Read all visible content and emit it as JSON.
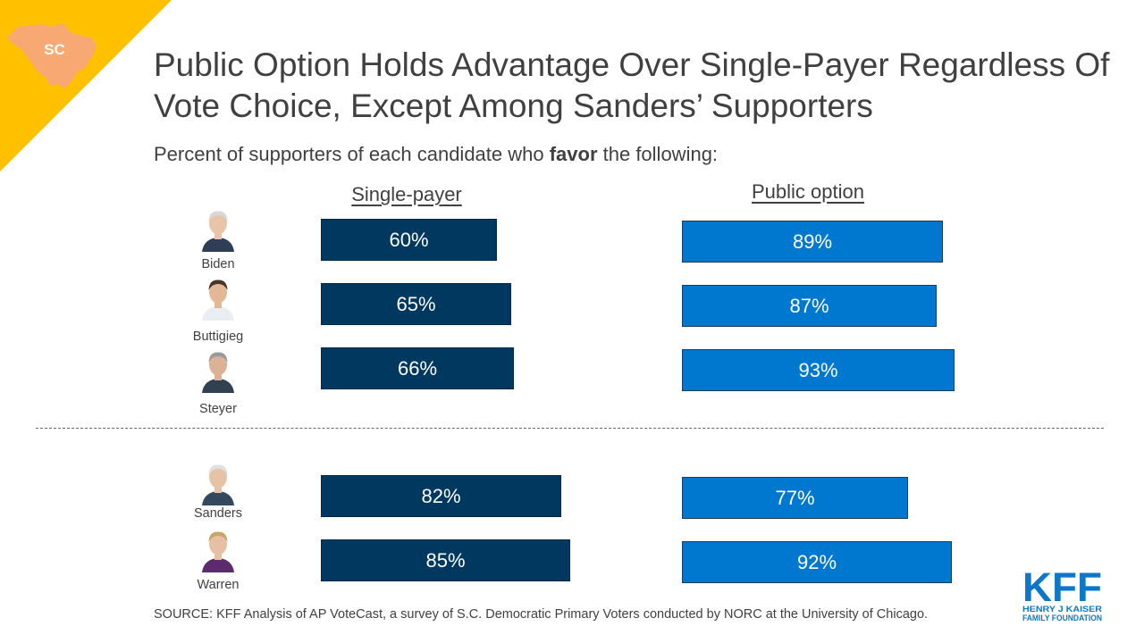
{
  "badge": {
    "state": "SC",
    "state_fill": "#f7a873",
    "triangle_fill": "#ffc000"
  },
  "title": "Public Option Holds Advantage Over Single-Payer Regardless Of Vote Choice, Except Among Sanders’ Supporters",
  "subtitle": {
    "before": "Percent of supporters of each candidate who ",
    "bold": "favor",
    "after": " the following:"
  },
  "chart_data": {
    "type": "bar",
    "orientation": "horizontal",
    "categories": [
      "Biden",
      "Buttigieg",
      "Steyer",
      "Sanders",
      "Warren"
    ],
    "series": [
      {
        "name": "Single-payer",
        "values": [
          60,
          65,
          66,
          82,
          85
        ],
        "labels": [
          "60%",
          "65%",
          "66%",
          "82%",
          "85%"
        ],
        "color": "#00385f"
      },
      {
        "name": "Public option",
        "values": [
          89,
          87,
          93,
          77,
          92
        ],
        "labels": [
          "89%",
          "87%",
          "93%",
          "77%",
          "92%"
        ],
        "color": "#0078cf"
      }
    ],
    "xlim": [
      0,
      100
    ]
  },
  "source": "SOURCE: KFF Analysis of AP VoteCast, a survey of S.C. Democratic Primary Voters conducted by NORC at the University of Chicago.",
  "logo": {
    "main": "KFF",
    "line1": "HENRY J KAISER",
    "line2": "FAMILY FOUNDATION",
    "color": "#0e77c8"
  }
}
